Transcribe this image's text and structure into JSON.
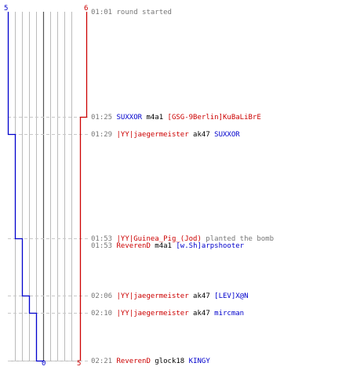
{
  "colors": {
    "team_a": "#cc0000",
    "team_b": "#0000cc",
    "grid": "#bbbbbb",
    "dash": "#c8c8c8",
    "text_grey": "#777777",
    "weapon": "#000000"
  },
  "axis_labels": {
    "blue_top": "5",
    "red_top": "6",
    "blue_bottom": "0",
    "red_bottom": "5"
  },
  "timeline": {
    "start_s": 61,
    "end_s": 141,
    "blue_alive_steps": [
      {
        "time": "01:01",
        "alive": 5
      },
      {
        "time": "01:29",
        "alive": 4
      },
      {
        "time": "01:53",
        "alive": 3
      },
      {
        "time": "02:06",
        "alive": 2
      },
      {
        "time": "02:10",
        "alive": 1
      },
      {
        "time": "02:21",
        "alive": 0
      }
    ]
  },
  "events": [
    {
      "time": "01:01",
      "text": "round started",
      "kind": "plain"
    },
    {
      "time": "01:25",
      "killer": "SUXXOR",
      "killer_team": "b",
      "weapon": "m4a1",
      "victim": "[GSG-9Berlin]KuBaLiBrE",
      "victim_team": "a",
      "kind": "kill"
    },
    {
      "time": "01:29",
      "killer": "|YY|jaegermeister",
      "killer_team": "a",
      "weapon": "ak47",
      "victim": "SUXXOR",
      "victim_team": "b",
      "kind": "kill"
    },
    {
      "time": "01:53",
      "killer": "|YY|Guinea_Pig_(Jod)",
      "killer_team": "a",
      "action": "planted the bomb",
      "kind": "bomb"
    },
    {
      "time": "01:53",
      "killer": "ReverenD",
      "killer_team": "a",
      "weapon": "m4a1",
      "victim": "[w.Sh]arpshooter",
      "victim_team": "b",
      "kind": "kill"
    },
    {
      "time": "02:06",
      "killer": "|YY|jaegermeister",
      "killer_team": "a",
      "weapon": "ak47",
      "victim": "[LEV]X@N",
      "victim_team": "b",
      "kind": "kill"
    },
    {
      "time": "02:10",
      "killer": "|YY|jaegermeister",
      "killer_team": "a",
      "weapon": "ak47",
      "victim": "mircman",
      "victim_team": "b",
      "kind": "kill"
    },
    {
      "time": "02:21",
      "killer": "ReverenD",
      "killer_team": "a",
      "weapon": "glock18",
      "victim": "KINGY",
      "victim_team": "b",
      "kind": "kill"
    }
  ]
}
